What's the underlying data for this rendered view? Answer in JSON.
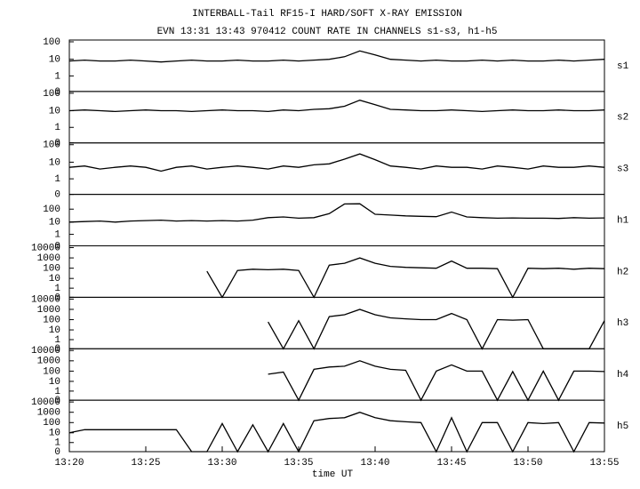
{
  "chart_data": {
    "type": "line",
    "log": true,
    "color": "#000000",
    "title": "INTERBALL-Tail RF15-I HARD/SOFT X-RAY EMISSION",
    "subtitle": "EVN 13:31 13:43 970412  COUNT RATE IN CHANNELS s1-s3, h1-h5",
    "xlabel": "time UT",
    "x": [
      "13:20",
      "13:21",
      "13:22",
      "13:23",
      "13:24",
      "13:25",
      "13:26",
      "13:27",
      "13:28",
      "13:29",
      "13:30",
      "13:31",
      "13:32",
      "13:33",
      "13:34",
      "13:35",
      "13:36",
      "13:37",
      "13:38",
      "13:39",
      "13:40",
      "13:41",
      "13:42",
      "13:43",
      "13:44",
      "13:45",
      "13:46",
      "13:47",
      "13:48",
      "13:49",
      "13:50",
      "13:51",
      "13:52",
      "13:53",
      "13:54",
      "13:55"
    ],
    "xlim": [
      "13:20",
      "13:55"
    ],
    "xticks": [
      "13:20",
      "13:25",
      "13:30",
      "13:35",
      "13:40",
      "13:45",
      "13:50",
      "13:55"
    ],
    "series": [
      {
        "name": "s1",
        "ylim": [
          0,
          100
        ],
        "yticks": [
          0,
          1,
          10,
          100
        ],
        "values": [
          8,
          9,
          8,
          8,
          9,
          8,
          7,
          8,
          9,
          8,
          8,
          9,
          8,
          8,
          9,
          8,
          9,
          10,
          14,
          30,
          18,
          10,
          9,
          8,
          9,
          8,
          8,
          9,
          8,
          9,
          8,
          8,
          9,
          8,
          9,
          10
        ]
      },
      {
        "name": "s2",
        "ylim": [
          0,
          100
        ],
        "yticks": [
          0,
          1,
          10,
          100
        ],
        "values": [
          10,
          11,
          10,
          9,
          10,
          11,
          10,
          10,
          9,
          10,
          11,
          10,
          10,
          9,
          11,
          10,
          12,
          13,
          18,
          40,
          22,
          12,
          11,
          10,
          10,
          11,
          10,
          9,
          10,
          11,
          10,
          10,
          11,
          10,
          10,
          11
        ]
      },
      {
        "name": "s3",
        "ylim": [
          0,
          100
        ],
        "yticks": [
          0,
          1,
          10,
          100
        ],
        "values": [
          5,
          6,
          4,
          5,
          6,
          5,
          3,
          5,
          6,
          4,
          5,
          6,
          5,
          4,
          6,
          5,
          7,
          8,
          15,
          30,
          14,
          6,
          5,
          4,
          6,
          5,
          5,
          4,
          6,
          5,
          4,
          6,
          5,
          5,
          6,
          5
        ]
      },
      {
        "name": "h1",
        "ylim": [
          0,
          1000
        ],
        "yticks": [
          0,
          1,
          10,
          100
        ],
        "values": [
          10,
          11,
          12,
          10,
          12,
          13,
          14,
          12,
          13,
          12,
          13,
          12,
          14,
          22,
          25,
          20,
          22,
          45,
          250,
          260,
          40,
          35,
          30,
          28,
          26,
          60,
          25,
          22,
          20,
          21,
          20,
          20,
          19,
          22,
          20,
          21
        ]
      },
      {
        "name": "h2",
        "ylim": [
          0,
          10000
        ],
        "yticks": [
          0,
          1,
          10,
          100,
          1000,
          10000
        ],
        "values": [
          null,
          null,
          null,
          null,
          null,
          null,
          null,
          null,
          null,
          50,
          0,
          60,
          80,
          70,
          80,
          60,
          0,
          200,
          300,
          1000,
          300,
          150,
          120,
          110,
          100,
          500,
          100,
          100,
          90,
          0,
          100,
          90,
          100,
          80,
          100,
          90
        ]
      },
      {
        "name": "h3",
        "ylim": [
          0,
          10000
        ],
        "yticks": [
          0,
          1,
          10,
          100,
          1000,
          10000
        ],
        "values": [
          null,
          null,
          null,
          null,
          null,
          null,
          null,
          null,
          null,
          null,
          null,
          null,
          null,
          60,
          0,
          80,
          0,
          200,
          300,
          1000,
          300,
          150,
          120,
          100,
          100,
          400,
          100,
          0,
          100,
          90,
          100,
          0,
          0,
          0,
          0,
          80
        ]
      },
      {
        "name": "h4",
        "ylim": [
          0,
          10000
        ],
        "yticks": [
          0,
          1,
          10,
          100,
          1000,
          10000
        ],
        "values": [
          null,
          null,
          null,
          null,
          null,
          null,
          null,
          null,
          null,
          null,
          null,
          null,
          null,
          50,
          80,
          0,
          150,
          250,
          300,
          1000,
          300,
          150,
          120,
          0,
          100,
          400,
          100,
          100,
          0,
          90,
          0,
          100,
          0,
          100,
          100,
          90
        ]
      },
      {
        "name": "h5",
        "ylim": [
          0,
          10000
        ],
        "yticks": [
          0,
          1,
          10,
          100,
          1000,
          10000
        ],
        "values": [
          10,
          20,
          20,
          20,
          20,
          20,
          20,
          20,
          0,
          0,
          80,
          0,
          60,
          0,
          80,
          0,
          150,
          250,
          300,
          1000,
          300,
          150,
          120,
          100,
          0,
          300,
          0,
          100,
          100,
          0,
          100,
          80,
          100,
          0,
          100,
          90
        ]
      }
    ]
  }
}
